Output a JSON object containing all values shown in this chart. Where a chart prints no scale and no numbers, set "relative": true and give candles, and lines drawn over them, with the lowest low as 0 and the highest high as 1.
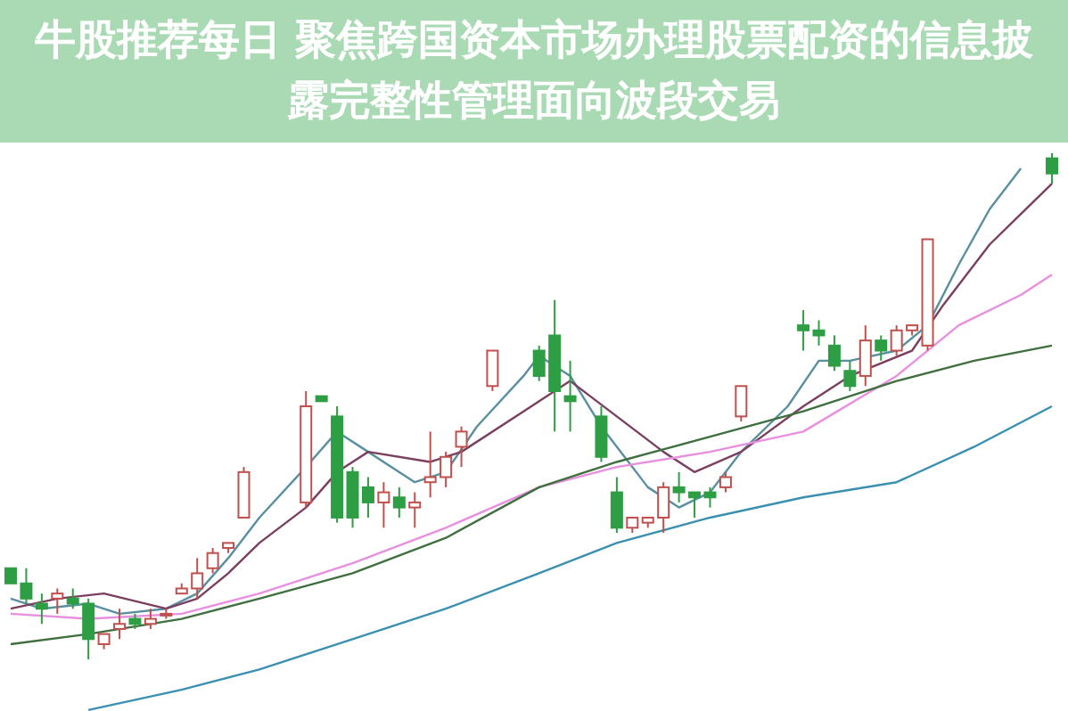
{
  "chart_data": {
    "type": "candlestick",
    "title": "牛股推荐每日 聚焦跨国资本市场办理股票配资的信息披露完整性管理面向波段交易",
    "relative": true,
    "categories": [
      null,
      null,
      null,
      null,
      null,
      null,
      null,
      null,
      null,
      null,
      null,
      null,
      null,
      null,
      null,
      null,
      null,
      null,
      null,
      null,
      null,
      null,
      null,
      null,
      null,
      null,
      null,
      null,
      null,
      null,
      null,
      null,
      null,
      null,
      null,
      null,
      null,
      null,
      null,
      null,
      null,
      null,
      null,
      null,
      null,
      null,
      null,
      null,
      null,
      null,
      null,
      null,
      null,
      null,
      null,
      null,
      null,
      null,
      null,
      null,
      null,
      null,
      null,
      null,
      null,
      null,
      null,
      null
    ],
    "ohlc": [
      [
        0.18,
        0.18,
        0.15,
        0.15
      ],
      [
        0.15,
        0.18,
        0.11,
        0.12
      ],
      [
        0.11,
        0.13,
        0.07,
        0.1
      ],
      [
        0.12,
        0.14,
        0.09,
        0.13
      ],
      [
        0.12,
        0.14,
        0.1,
        0.11
      ],
      [
        0.11,
        0.12,
        0,
        0.04
      ],
      [
        0.03,
        0.05,
        0.02,
        0.05
      ],
      [
        0.06,
        0.1,
        0.04,
        0.07
      ],
      [
        0.08,
        0.09,
        0.06,
        0.07
      ],
      [
        0.07,
        0.1,
        0.06,
        0.08
      ],
      [
        0.09,
        0.1,
        0.08,
        0.09
      ],
      [
        0.13,
        0.15,
        0.13,
        0.14
      ],
      [
        0.14,
        0.2,
        0.12,
        0.17
      ],
      [
        0.18,
        0.22,
        0.17,
        0.21
      ],
      [
        0.22,
        0.23,
        0.21,
        0.23
      ],
      [
        0.28,
        0.38,
        0.28,
        0.37
      ],
      null,
      null,
      null,
      [
        0.31,
        0.53,
        0.3,
        0.5
      ],
      [
        0.52,
        0.52,
        0.51,
        0.51
      ],
      [
        0.48,
        0.5,
        0.27,
        0.28
      ],
      [
        0.37,
        0.38,
        0.26,
        0.28
      ],
      [
        0.34,
        0.36,
        0.28,
        0.31
      ],
      [
        0.31,
        0.35,
        0.26,
        0.33
      ],
      [
        0.32,
        0.34,
        0.28,
        0.3
      ],
      [
        0.3,
        0.33,
        0.26,
        0.31
      ],
      [
        0.35,
        0.45,
        0.32,
        0.36
      ],
      [
        0.36,
        0.41,
        0.34,
        0.4
      ],
      [
        0.42,
        0.46,
        0.38,
        0.45
      ],
      null,
      [
        0.54,
        0.61,
        0.53,
        0.61
      ],
      null,
      null,
      [
        0.61,
        0.62,
        0.55,
        0.56
      ],
      [
        0.64,
        0.71,
        0.45,
        0.53
      ],
      [
        0.52,
        0.59,
        0.45,
        0.51
      ],
      null,
      [
        0.48,
        0.5,
        0.39,
        0.4
      ],
      [
        0.33,
        0.36,
        0.25,
        0.26
      ],
      [
        0.26,
        0.28,
        0.25,
        0.28
      ],
      [
        0.27,
        0.28,
        0.26,
        0.28
      ],
      [
        0.28,
        0.35,
        0.25,
        0.34
      ],
      [
        0.34,
        0.37,
        0.31,
        0.33
      ],
      [
        0.33,
        0.33,
        0.28,
        0.32
      ],
      [
        0.33,
        0.34,
        0.3,
        0.32
      ],
      [
        0.34,
        0.37,
        0.33,
        0.36
      ],
      [
        0.48,
        0.54,
        0.47,
        0.54
      ],
      null,
      null,
      null,
      [
        0.66,
        0.69,
        0.61,
        0.65
      ],
      [
        0.65,
        0.67,
        0.62,
        0.64
      ],
      [
        0.62,
        0.64,
        0.57,
        0.58
      ],
      [
        0.57,
        0.59,
        0.53,
        0.54
      ],
      [
        0.56,
        0.66,
        0.54,
        0.63
      ],
      [
        0.63,
        0.64,
        0.59,
        0.61
      ],
      [
        0.61,
        0.66,
        0.6,
        0.65
      ],
      [
        0.65,
        0.66,
        0.64,
        0.66
      ],
      [
        0.62,
        0.83,
        0.61,
        0.83
      ],
      null,
      null,
      null,
      null,
      null,
      null,
      null,
      [
        0.99,
        1,
        0.94,
        0.96
      ]
    ],
    "series": [
      {
        "type": "line",
        "color": "#5a8fa0",
        "values": [
          0.12,
          null,
          0.1,
          null,
          null,
          0.11,
          null,
          0.09,
          null,
          null,
          0.1,
          null,
          0.13,
          null,
          0.2,
          null,
          0.28,
          null,
          null,
          0.38,
          null,
          0.45,
          null,
          0.41,
          null,
          null,
          0.35,
          null,
          0.37,
          null,
          0.46,
          null,
          null,
          0.56,
          0.6,
          null,
          0.56,
          null,
          0.46,
          null,
          null,
          0.34,
          null,
          0.3,
          null,
          0.33,
          null,
          0.41,
          null,
          null,
          0.5,
          null,
          0.59,
          null,
          0.59,
          null,
          null,
          0.61,
          null,
          0.66,
          null,
          0.78,
          null,
          0.89,
          null,
          0.97,
          null,
          null
        ]
      },
      {
        "type": "line",
        "color": "#7b3f5f",
        "values": [
          0.1,
          null,
          null,
          0.12,
          null,
          null,
          0.13,
          null,
          null,
          null,
          0.1,
          null,
          0.12,
          null,
          0.17,
          null,
          0.23,
          null,
          null,
          0.3,
          null,
          0.37,
          null,
          0.41,
          null,
          null,
          null,
          0.39,
          null,
          0.41,
          null,
          null,
          null,
          0.49,
          null,
          null,
          0.55,
          null,
          null,
          0.48,
          null,
          null,
          0.41,
          null,
          0.37,
          null,
          null,
          0.41,
          null,
          null,
          null,
          0.5,
          null,
          null,
          0.56,
          null,
          null,
          null,
          0.61,
          null,
          0.7,
          null,
          null,
          0.82,
          null,
          null,
          null,
          0.94
        ]
      },
      {
        "type": "line",
        "color": "#e88fe0",
        "values": [
          0.09,
          null,
          null,
          null,
          null,
          0.08,
          null,
          null,
          null,
          null,
          null,
          0.09,
          null,
          null,
          null,
          null,
          0.13,
          null,
          null,
          null,
          null,
          null,
          0.19,
          null,
          null,
          null,
          null,
          null,
          0.26,
          null,
          null,
          null,
          null,
          null,
          0.34,
          null,
          null,
          null,
          null,
          0.38,
          null,
          null,
          null,
          null,
          null,
          0.41,
          null,
          null,
          null,
          null,
          null,
          0.45,
          null,
          null,
          null,
          null,
          null,
          0.56,
          null,
          null,
          null,
          0.66,
          null,
          null,
          null,
          0.72,
          null,
          0.76
        ]
      },
      {
        "type": "line",
        "color": "#3f6f3f",
        "values": [
          0.03,
          null,
          null,
          null,
          null,
          0.05,
          null,
          null,
          null,
          null,
          null,
          0.08,
          null,
          null,
          null,
          null,
          0.12,
          null,
          null,
          null,
          null,
          null,
          0.17,
          null,
          null,
          null,
          null,
          null,
          0.24,
          null,
          null,
          null,
          null,
          null,
          0.34,
          null,
          null,
          null,
          null,
          0.39,
          null,
          null,
          null,
          null,
          null,
          0.44,
          null,
          null,
          null,
          null,
          null,
          0.49,
          null,
          null,
          null,
          null,
          null,
          0.55,
          null,
          null,
          null,
          null,
          0.59,
          null,
          null,
          null,
          null,
          0.62
        ]
      },
      {
        "type": "line",
        "color": "#3b8fb0",
        "values": [
          null,
          null,
          null,
          null,
          null,
          -0.1,
          null,
          null,
          null,
          null,
          null,
          -0.06,
          null,
          null,
          null,
          null,
          -0.02,
          null,
          null,
          null,
          null,
          null,
          0.04,
          null,
          null,
          null,
          null,
          null,
          0.1,
          null,
          null,
          null,
          null,
          null,
          0.17,
          null,
          null,
          null,
          null,
          0.23,
          null,
          null,
          null,
          null,
          null,
          0.28,
          null,
          null,
          null,
          null,
          null,
          0.32,
          null,
          null,
          null,
          null,
          null,
          0.35,
          null,
          null,
          null,
          null,
          0.42,
          null,
          null,
          null,
          null,
          0.5
        ]
      }
    ]
  }
}
